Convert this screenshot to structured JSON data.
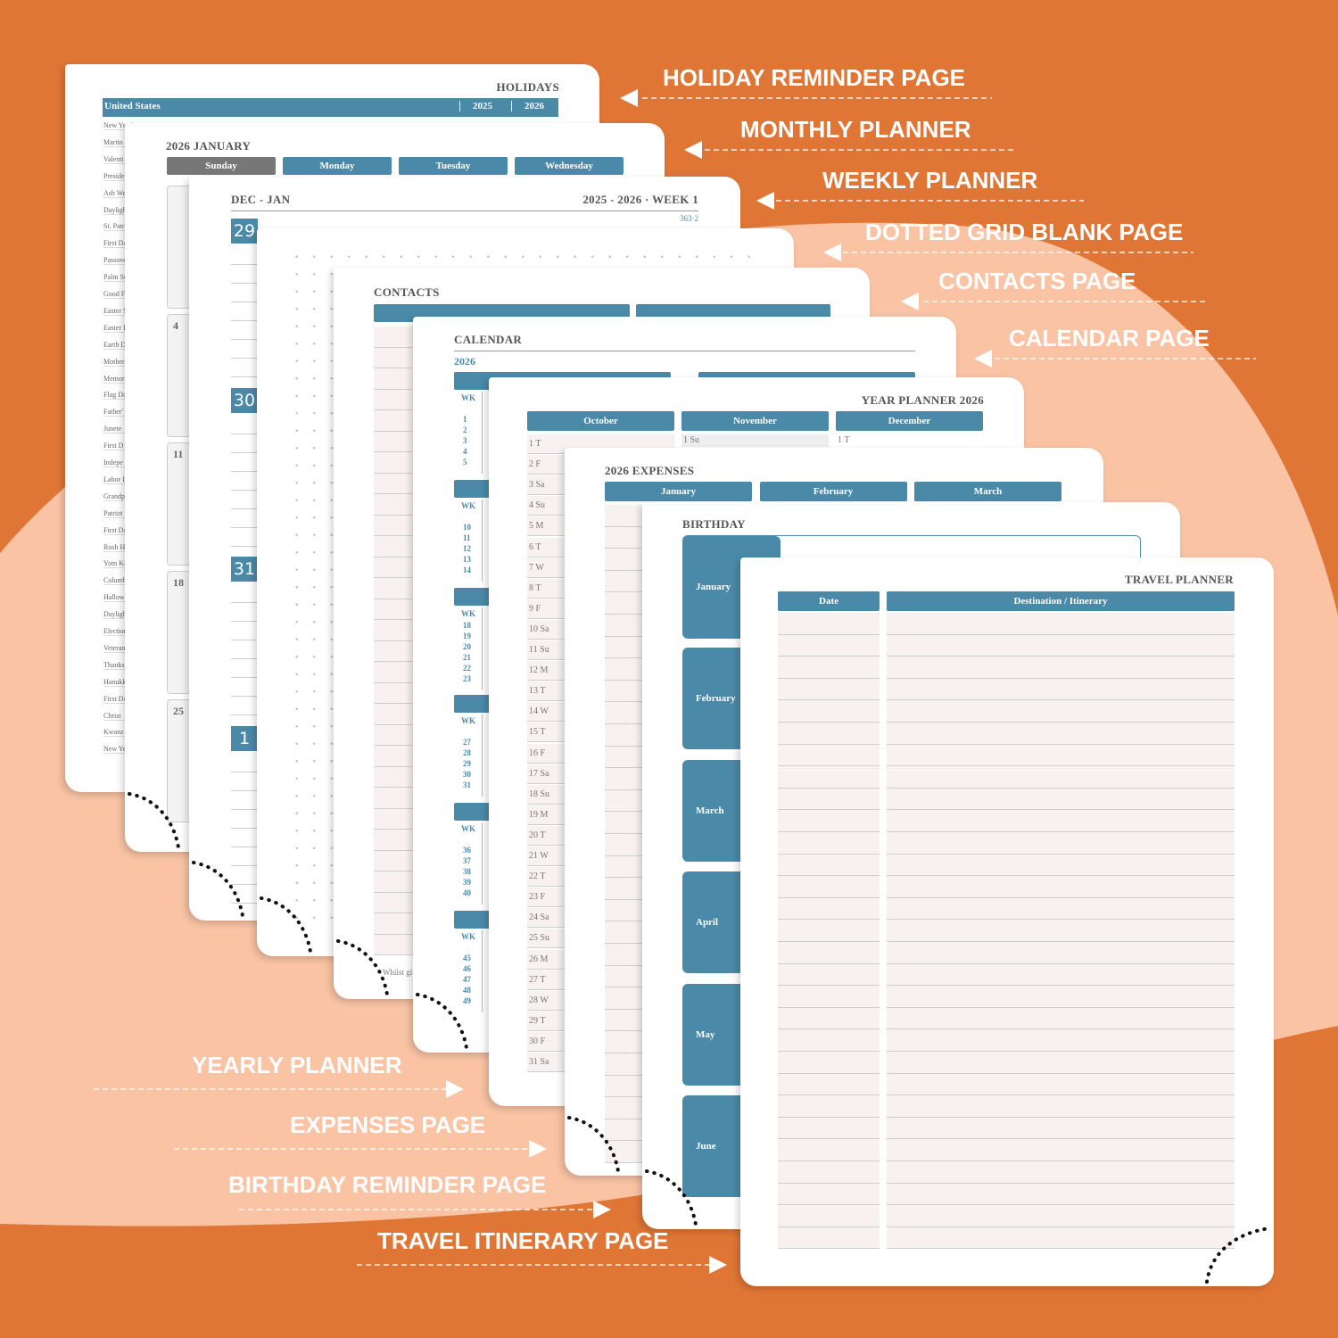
{
  "labels_right": [
    "HOLIDAY REMINDER PAGE",
    "MONTHLY PLANNER",
    "WEEKLY PLANNER",
    "DOTTED GRID BLANK PAGE",
    "CONTACTS PAGE",
    "CALENDAR PAGE"
  ],
  "labels_left": [
    "YEARLY PLANNER",
    "EXPENSES PAGE",
    "BIRTHDAY REMINDER PAGE",
    "TRAVEL ITINERARY PAGE"
  ],
  "holidays": {
    "title": "HOLIDAYS",
    "country": "United States",
    "years": [
      "2025",
      "2026"
    ],
    "rows": [
      "New Year's",
      "Martin",
      "Valenti",
      "Preside",
      "Ash We",
      "Dayligh",
      "St. Patr",
      "First Da",
      "Passove",
      "Palm Su",
      "Good F",
      "Easter S",
      "Easter I",
      "Earth D",
      "Mother",
      "Memor",
      "Flag Da",
      "Father'",
      "Junete",
      "First D",
      "Indepe",
      "Labor I",
      "Grandp",
      "Patriot",
      "First Da",
      "Rosh H",
      "Yom Ki",
      "Columb",
      "Hallow",
      "Dayligh",
      "Election",
      "Veteran",
      "Thanks",
      "Hanukk",
      "First Da",
      "Christ",
      "Kwanz",
      "New Ye"
    ]
  },
  "monthly": {
    "title": "2026 JANUARY",
    "days": [
      "Sunday",
      "Monday",
      "Tuesday",
      "Wednesday"
    ],
    "dates": [
      "4",
      "11",
      "18",
      "25"
    ]
  },
  "weekly": {
    "title": "DEC - JAN",
    "week": "2025 - 2026 · WEEK 1",
    "day_count": "363·2",
    "dates": [
      "29",
      "30",
      "31",
      "1"
    ]
  },
  "contacts": {
    "title": "CONTACTS",
    "footer": "Whilst gi"
  },
  "calendar": {
    "title": "CALENDAR",
    "year": "2026",
    "wk": "WK",
    "weeks": [
      [
        "1",
        "2",
        "3",
        "4",
        "5"
      ],
      [
        "10",
        "11",
        "12",
        "13",
        "14"
      ],
      [
        "18",
        "19",
        "20",
        "21",
        "22",
        "23"
      ],
      [
        "27",
        "28",
        "29",
        "30",
        "31"
      ],
      [
        "36",
        "37",
        "38",
        "39",
        "40"
      ],
      [
        "45",
        "46",
        "47",
        "48",
        "49"
      ]
    ]
  },
  "yearly": {
    "title": "YEAR PLANNER 2026",
    "months": [
      "October",
      "November",
      "December"
    ],
    "days": [
      "1 T",
      "2 F",
      "3 Sa",
      "4 Su",
      "5 M",
      "6 T",
      "7 W",
      "8 T",
      "9 F",
      "10 Sa",
      "11 Su",
      "12 M",
      "13 T",
      "14 W",
      "15 T",
      "16 F",
      "17 Sa",
      "18 Su",
      "19 M",
      "20 T",
      "21 W",
      "22 T",
      "23 F",
      "24 Sa",
      "25 Su",
      "26 M",
      "27 T",
      "28 W",
      "29 T",
      "30 F",
      "31 Sa"
    ],
    "november_first": "1 Su",
    "december_first": "1 T"
  },
  "expenses": {
    "title": "2026 EXPENSES",
    "months": [
      "January",
      "February",
      "March"
    ]
  },
  "birthday": {
    "title": "BIRTHDAY",
    "months": [
      "January",
      "February",
      "March",
      "April",
      "May",
      "June"
    ]
  },
  "travel": {
    "title": "TRAVEL PLANNER",
    "columns": [
      "Date",
      "Destination / Itinerary"
    ]
  }
}
